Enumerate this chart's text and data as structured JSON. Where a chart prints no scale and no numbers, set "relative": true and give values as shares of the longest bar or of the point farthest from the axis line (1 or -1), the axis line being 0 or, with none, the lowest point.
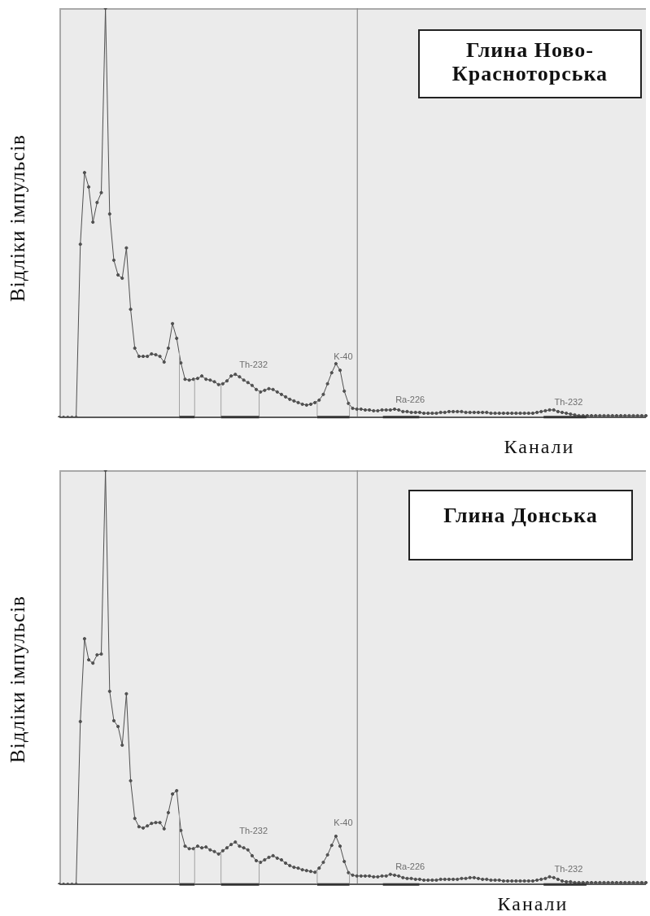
{
  "chart_data": [
    {
      "type": "line",
      "title": "Глина Ново-Красноторська",
      "xlabel": "Канали",
      "ylabel": "Відліки імпульсів",
      "annotations": [
        "Th-232",
        "K-40",
        "Ra-226",
        "Th-232"
      ],
      "relative": true,
      "marker": "circle",
      "color": "#505050",
      "categories": [
        null,
        null,
        null,
        null,
        null,
        null,
        null,
        null,
        null,
        null,
        null,
        null,
        null,
        null,
        null,
        null,
        null,
        null,
        null,
        null,
        null,
        null,
        null,
        null,
        null,
        null,
        null,
        null,
        null,
        null,
        null,
        null,
        null,
        null,
        null,
        null,
        null,
        null,
        null,
        null,
        null,
        null,
        null,
        null,
        null,
        null,
        null,
        null,
        null,
        null,
        null,
        null,
        null,
        null,
        null,
        null,
        null,
        null,
        null,
        null,
        null,
        null,
        null,
        null,
        null,
        null,
        null,
        null,
        null,
        null,
        null,
        null,
        null,
        null,
        null,
        null,
        null,
        null,
        null,
        null,
        null,
        null,
        null,
        null,
        null,
        null,
        null,
        null,
        null,
        null,
        null,
        null,
        null,
        null,
        null,
        null,
        null,
        null,
        null,
        null,
        null,
        null,
        null,
        null,
        null,
        null,
        null,
        null,
        null,
        null,
        null,
        null,
        null,
        null,
        null,
        null,
        null,
        null,
        null,
        null,
        null,
        null,
        null,
        null,
        null,
        null,
        null,
        null,
        null,
        null,
        null,
        null,
        null,
        null,
        null,
        null,
        null,
        null,
        null,
        null,
        null
      ],
      "values": [
        0,
        0,
        0,
        0,
        0,
        0.423,
        0.598,
        0.563,
        0.477,
        0.525,
        0.549,
        1,
        0.497,
        0.384,
        0.348,
        0.34,
        0.414,
        0.264,
        0.169,
        0.149,
        0.149,
        0.149,
        0.155,
        0.153,
        0.149,
        0.135,
        0.169,
        0.229,
        0.193,
        0.133,
        0.093,
        0.091,
        0.093,
        0.095,
        0.101,
        0.093,
        0.091,
        0.087,
        0.08,
        0.082,
        0.089,
        0.101,
        0.105,
        0.099,
        0.091,
        0.085,
        0.078,
        0.068,
        0.062,
        0.066,
        0.07,
        0.068,
        0.062,
        0.056,
        0.05,
        0.044,
        0.04,
        0.036,
        0.032,
        0.03,
        0.032,
        0.036,
        0.042,
        0.056,
        0.082,
        0.109,
        0.131,
        0.115,
        0.064,
        0.034,
        0.022,
        0.02,
        0.02,
        0.018,
        0.018,
        0.016,
        0.016,
        0.018,
        0.018,
        0.018,
        0.02,
        0.018,
        0.014,
        0.014,
        0.012,
        0.012,
        0.012,
        0.01,
        0.01,
        0.01,
        0.01,
        0.012,
        0.012,
        0.014,
        0.014,
        0.014,
        0.014,
        0.012,
        0.012,
        0.012,
        0.012,
        0.012,
        0.012,
        0.01,
        0.01,
        0.01,
        0.01,
        0.01,
        0.01,
        0.01,
        0.01,
        0.01,
        0.01,
        0.01,
        0.012,
        0.014,
        0.016,
        0.018,
        0.018,
        0.014,
        0.012,
        0.01,
        0.008,
        0.006,
        0.004,
        0.004,
        0.004,
        0.004,
        0.004,
        0.004,
        0.004,
        0.004,
        0.004,
        0.004,
        0.004,
        0.004,
        0.004,
        0.004,
        0.004,
        0.004,
        0.004
      ]
    },
    {
      "type": "line",
      "title": "Глина Донська",
      "xlabel": "Канали",
      "ylabel": "Відліки імпульсів",
      "annotations": [
        "Th-232",
        "K-40",
        "Ra-226",
        "Th-232"
      ],
      "relative": true,
      "marker": "circle",
      "color": "#505050",
      "categories": [
        null,
        null,
        null,
        null,
        null,
        null,
        null,
        null,
        null,
        null,
        null,
        null,
        null,
        null,
        null,
        null,
        null,
        null,
        null,
        null,
        null,
        null,
        null,
        null,
        null,
        null,
        null,
        null,
        null,
        null,
        null,
        null,
        null,
        null,
        null,
        null,
        null,
        null,
        null,
        null,
        null,
        null,
        null,
        null,
        null,
        null,
        null,
        null,
        null,
        null,
        null,
        null,
        null,
        null,
        null,
        null,
        null,
        null,
        null,
        null,
        null,
        null,
        null,
        null,
        null,
        null,
        null,
        null,
        null,
        null,
        null,
        null,
        null,
        null,
        null,
        null,
        null,
        null,
        null,
        null,
        null,
        null,
        null,
        null,
        null,
        null,
        null,
        null,
        null,
        null,
        null,
        null,
        null,
        null,
        null,
        null,
        null,
        null,
        null,
        null,
        null,
        null,
        null,
        null,
        null,
        null,
        null,
        null,
        null,
        null,
        null,
        null,
        null,
        null,
        null,
        null,
        null,
        null,
        null,
        null,
        null,
        null,
        null,
        null,
        null,
        null,
        null,
        null,
        null,
        null,
        null,
        null,
        null,
        null,
        null,
        null,
        null,
        null,
        null,
        null,
        null
      ],
      "values": [
        0,
        0,
        0,
        0,
        0,
        0.393,
        0.593,
        0.542,
        0.534,
        0.554,
        0.556,
        1,
        0.466,
        0.395,
        0.381,
        0.336,
        0.46,
        0.25,
        0.159,
        0.139,
        0.136,
        0.141,
        0.147,
        0.149,
        0.149,
        0.134,
        0.173,
        0.218,
        0.226,
        0.13,
        0.092,
        0.086,
        0.086,
        0.092,
        0.088,
        0.09,
        0.083,
        0.079,
        0.073,
        0.081,
        0.088,
        0.096,
        0.102,
        0.092,
        0.088,
        0.083,
        0.069,
        0.057,
        0.053,
        0.059,
        0.065,
        0.069,
        0.063,
        0.059,
        0.051,
        0.045,
        0.041,
        0.039,
        0.035,
        0.033,
        0.031,
        0.029,
        0.039,
        0.053,
        0.071,
        0.094,
        0.116,
        0.092,
        0.055,
        0.028,
        0.022,
        0.02,
        0.02,
        0.02,
        0.02,
        0.018,
        0.018,
        0.02,
        0.02,
        0.024,
        0.022,
        0.02,
        0.016,
        0.014,
        0.014,
        0.012,
        0.012,
        0.01,
        0.01,
        0.01,
        0.01,
        0.012,
        0.012,
        0.012,
        0.012,
        0.012,
        0.014,
        0.014,
        0.016,
        0.016,
        0.014,
        0.012,
        0.012,
        0.01,
        0.01,
        0.01,
        0.008,
        0.008,
        0.008,
        0.008,
        0.008,
        0.008,
        0.008,
        0.008,
        0.01,
        0.012,
        0.014,
        0.018,
        0.016,
        0.012,
        0.008,
        0.006,
        0.006,
        0.004,
        0.004,
        0.004,
        0.004,
        0.004,
        0.004,
        0.004,
        0.004,
        0.004,
        0.004,
        0.004,
        0.004,
        0.004,
        0.004,
        0.004,
        0.004,
        0.004,
        0.004
      ]
    }
  ]
}
